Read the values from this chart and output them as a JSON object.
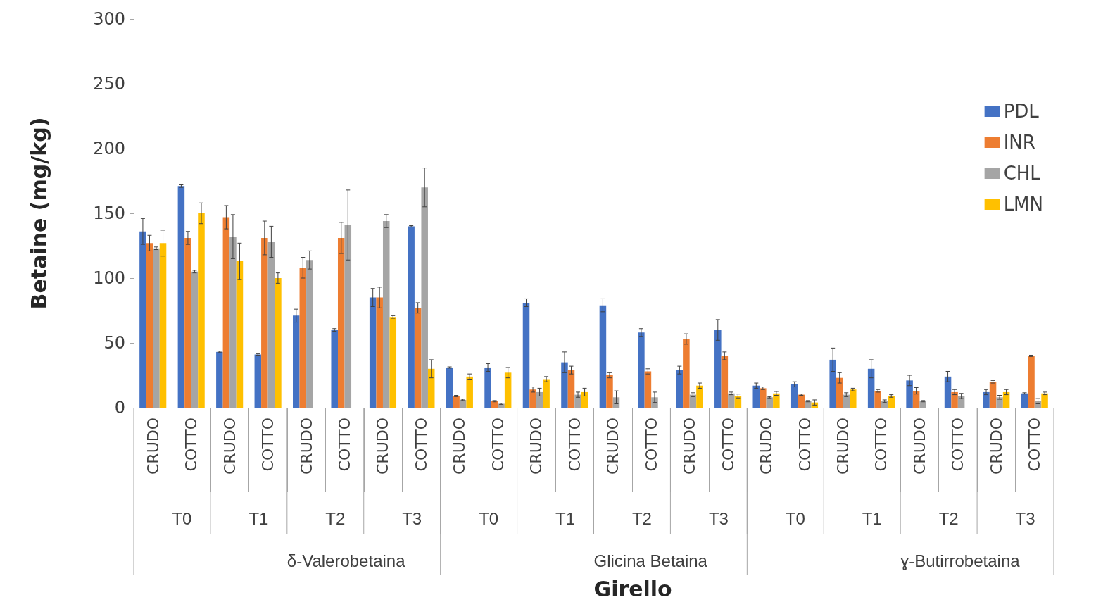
{
  "chart_data": {
    "type": "bar",
    "ylabel": "Betaine (mg/kg)",
    "xlabel": "Girello",
    "categories": [
      "CRUDO",
      "COTTO",
      "CRUDO",
      "COTTO",
      "CRUDO",
      "COTTO",
      "CRUDO",
      "COTTO",
      "CRUDO",
      "COTTO",
      "CRUDO",
      "COTTO",
      "CRUDO",
      "COTTO",
      "CRUDO",
      "COTTO",
      "CRUDO",
      "COTTO",
      "CRUDO",
      "COTTO",
      "CRUDO",
      "COTTO",
      "CRUDO",
      "COTTO"
    ],
    "annotations": [
      "T0",
      "T1",
      "T2",
      "T3",
      "T0",
      "T1",
      "T2",
      "T3",
      "T0",
      "T1",
      "T2",
      "T3",
      "δ-Valerobetaina",
      "Glicina Betaina",
      "ɣ-Butirrobetaina"
    ],
    "series": [
      {
        "name": "PDL",
        "color": "#4472c4",
        "values": [
          136,
          171,
          43,
          41,
          71,
          60,
          85,
          140,
          31,
          31,
          81,
          35,
          79,
          58,
          29,
          60,
          17,
          18,
          37,
          30,
          21,
          24,
          12,
          11
        ],
        "errors": [
          10,
          1,
          0.5,
          0.5,
          5,
          1,
          7,
          0.5,
          0.5,
          3,
          3,
          8,
          5,
          3,
          3,
          8,
          2,
          2,
          9,
          7,
          4,
          4,
          2,
          0.5
        ]
      },
      {
        "name": "INR",
        "color": "#ed7d31",
        "values": [
          127,
          131,
          147,
          131,
          108,
          131,
          85,
          77,
          9,
          5,
          14,
          29,
          25,
          28,
          53,
          40,
          15,
          10,
          23,
          13,
          13,
          12,
          20,
          40
        ],
        "errors": [
          6,
          5,
          9,
          13,
          8,
          12,
          8,
          4,
          0.5,
          0.5,
          2,
          3,
          2,
          2,
          4,
          3,
          1,
          0.5,
          4,
          1,
          2.5,
          2,
          1,
          0.5
        ]
      },
      {
        "name": "CHL",
        "color": "#a5a5a5",
        "values": [
          123,
          105,
          132,
          128,
          114,
          141,
          144,
          170,
          6,
          3,
          12,
          10,
          8,
          8,
          10,
          11,
          8,
          5,
          10,
          5,
          5,
          9,
          8,
          5
        ],
        "errors": [
          1,
          1,
          17,
          12,
          7,
          27,
          5,
          15,
          0.5,
          0.5,
          3,
          2,
          5,
          4,
          1.5,
          1,
          0.5,
          0.5,
          1.5,
          1,
          0.5,
          2,
          1.5,
          2
        ]
      },
      {
        "name": "LMN",
        "color": "#ffc000",
        "values": [
          127,
          150,
          113,
          100,
          null,
          null,
          70,
          30,
          24,
          27,
          22,
          12,
          null,
          null,
          17,
          9,
          11,
          4,
          14,
          9,
          null,
          null,
          12,
          11
        ],
        "errors": [
          10,
          8,
          14,
          4,
          null,
          null,
          1,
          7,
          2,
          4,
          2,
          3,
          null,
          null,
          2,
          1.5,
          1.5,
          2,
          1,
          1,
          null,
          null,
          2,
          1
        ]
      }
    ],
    "ylim": [
      0,
      300
    ],
    "yticks": [
      0,
      50,
      100,
      150,
      200,
      250,
      300
    ],
    "grid": false,
    "legend": "right"
  }
}
